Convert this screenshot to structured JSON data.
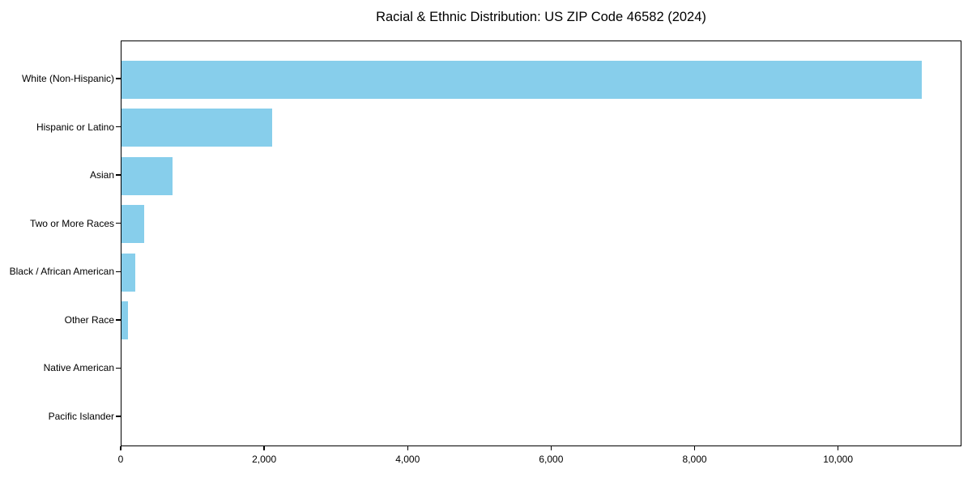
{
  "chart_data": {
    "type": "bar",
    "orientation": "horizontal",
    "title": "Racial & Ethnic Distribution: US ZIP Code 46582 (2024)",
    "categories": [
      "White (Non-Hispanic)",
      "Hispanic or Latino",
      "Asian",
      "Two or More Races",
      "Black / African American",
      "Other Race",
      "Native American",
      "Pacific Islander"
    ],
    "values": [
      11160,
      2100,
      710,
      315,
      190,
      95,
      0,
      0
    ],
    "x_ticks": [
      0,
      2000,
      4000,
      6000,
      8000,
      10000
    ],
    "x_tick_labels": [
      "0",
      "2,000",
      "4,000",
      "6,000",
      "8,000",
      "10,000"
    ],
    "xlim": [
      0,
      11720
    ],
    "xlabel": "",
    "ylabel": "",
    "bar_color": "#87CEEB",
    "axis_color": "#000000",
    "background_color": "#FFFFFF",
    "grid": false,
    "legend": "none"
  }
}
